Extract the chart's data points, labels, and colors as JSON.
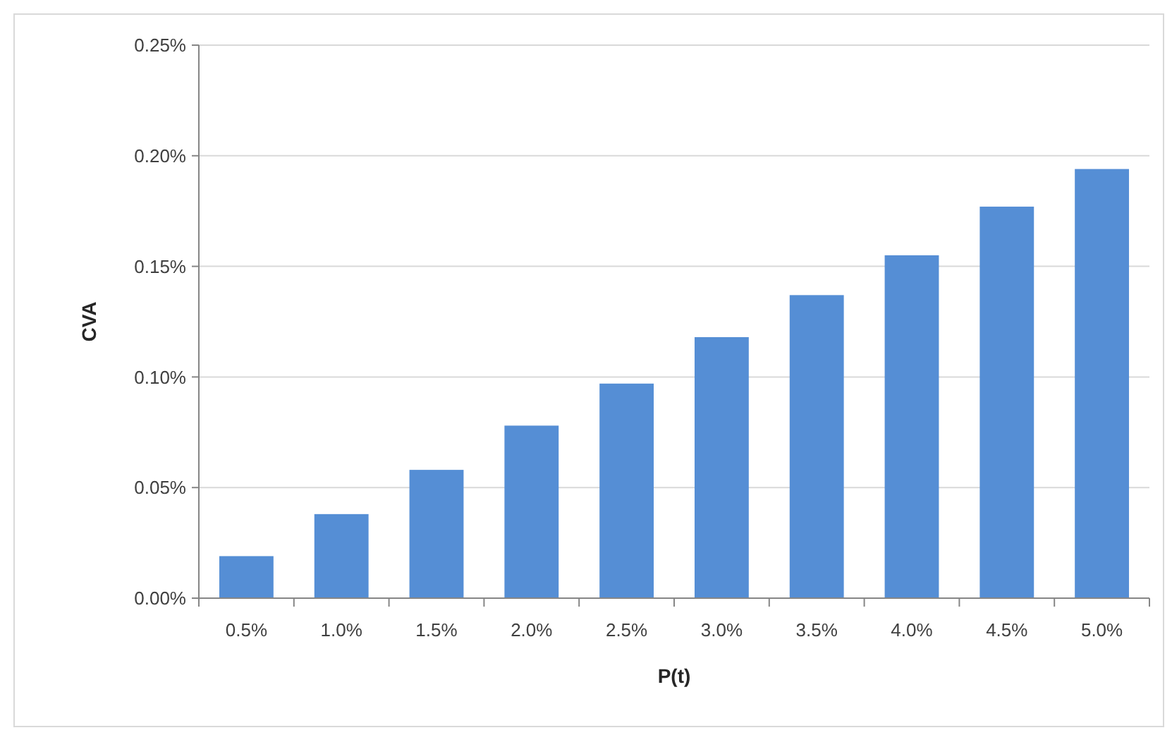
{
  "chart_data": {
    "type": "bar",
    "xlabel": "P(t)",
    "ylabel": "CVA",
    "categories": [
      "0.5%",
      "1.0%",
      "1.5%",
      "2.0%",
      "2.5%",
      "3.0%",
      "3.5%",
      "4.0%",
      "4.5%",
      "5.0%"
    ],
    "values": [
      0.019,
      0.038,
      0.058,
      0.078,
      0.097,
      0.118,
      0.137,
      0.155,
      0.177,
      0.194
    ],
    "color": "#558ed5",
    "ylim": [
      0,
      0.25
    ],
    "yticks": [
      {
        "value": 0,
        "label": "0.00%"
      },
      {
        "value": 0.05,
        "label": "0.05%"
      },
      {
        "value": 0.1,
        "label": "0.10%"
      },
      {
        "value": 0.15,
        "label": "0.15%"
      },
      {
        "value": 0.2,
        "label": "0.20%"
      },
      {
        "value": 0.25,
        "label": "0.25%"
      }
    ],
    "grid": "y"
  }
}
